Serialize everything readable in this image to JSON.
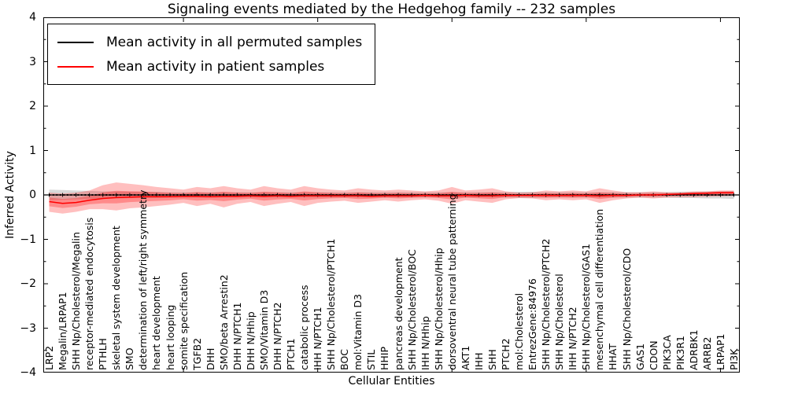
{
  "chart_data": {
    "type": "line",
    "title": "Signaling events mediated by the Hedgehog family -- 232 samples",
    "xlabel": "Cellular Entities",
    "ylabel": "Inferred Activity",
    "ylim": [
      -4,
      4
    ],
    "ytick_values": [
      4,
      3,
      2,
      1,
      0,
      -1,
      -2,
      -3,
      -4
    ],
    "ytick_labels": [
      "4",
      "3",
      "2",
      "1",
      "0",
      "−1",
      "−2",
      "−3",
      "−4"
    ],
    "grid": false,
    "legend_position": "upper left",
    "categories": [
      "LRP2",
      "Megalin/LRPAP1",
      "SHH Np/Cholesterol/Megalin",
      "receptor-mediated endocytosis",
      "PTHLH",
      "skeletal system development",
      "SMO",
      "determination of left/right symmetry",
      "heart development",
      "heart looping",
      "somite specification",
      "TGFB2",
      "DHH",
      "SMO/beta Arrestin2",
      "DHH N/PTCH1",
      "DHH N/Hhip",
      "SMO/Vitamin D3",
      "DHH N/PTCH2",
      "PTCH1",
      "catabolic process",
      "IHH N/PTCH1",
      "SHH Np/Cholesterol/PTCH1",
      "BOC",
      "mol:Vitamin D3",
      "STIL",
      "HHIP",
      "pancreas development",
      "SHH Np/Cholesterol/BOC",
      "IHH N/Hhip",
      "SHH Np/Cholesterol/Hhip",
      "dorsoventral neural tube patterning",
      "AKT1",
      "IHH",
      "SHH",
      "PTCH2",
      "mol:Cholesterol",
      "EntrezGene:84976",
      "SHH Np/Cholesterol/PTCH2",
      "SHH Np/Cholesterol",
      "IHH N/PTCH2",
      "SHH Np/Cholesterol/GAS1",
      "mesenchymal cell differentiation",
      "HHAT",
      "SHH Np/Cholesterol/CDO",
      "GAS1",
      "CDON",
      "PIK3CA",
      "PIK3R1",
      "ADRBK1",
      "ARRB2",
      "LRPAP1",
      "PI3K"
    ],
    "series": [
      {
        "name": "Mean activity in all permuted samples",
        "color": "#000000",
        "mean": 0.0,
        "band_half_width": [
          0.12,
          0.11,
          0.1,
          0.09,
          0.08,
          0.08,
          0.07,
          0.07,
          0.07,
          0.06,
          0.06,
          0.06,
          0.06,
          0.06,
          0.06,
          0.06,
          0.06,
          0.06,
          0.06,
          0.06,
          0.06,
          0.06,
          0.06,
          0.06,
          0.06,
          0.06,
          0.06,
          0.06,
          0.06,
          0.06,
          0.06,
          0.06,
          0.06,
          0.06,
          0.06,
          0.07,
          0.07,
          0.06,
          0.06,
          0.06,
          0.06,
          0.06,
          0.06,
          0.06,
          0.06,
          0.06,
          0.06,
          0.07,
          0.07,
          0.08,
          0.08,
          0.09
        ]
      },
      {
        "name": "Mean activity in patient samples",
        "color": "#ff0000",
        "values": [
          -0.15,
          -0.19,
          -0.17,
          -0.12,
          -0.08,
          -0.06,
          -0.05,
          -0.04,
          -0.04,
          -0.04,
          -0.03,
          -0.03,
          -0.04,
          -0.03,
          -0.03,
          -0.02,
          -0.03,
          -0.02,
          -0.03,
          -0.02,
          -0.02,
          -0.02,
          -0.02,
          -0.02,
          -0.03,
          -0.02,
          -0.02,
          -0.02,
          -0.01,
          -0.02,
          -0.02,
          -0.01,
          -0.02,
          -0.02,
          -0.01,
          -0.01,
          -0.01,
          -0.01,
          -0.01,
          -0.01,
          -0.01,
          -0.02,
          -0.01,
          -0.01,
          0.0,
          0.0,
          0.01,
          0.02,
          0.03,
          0.04,
          0.05,
          0.05
        ],
        "band_upper": [
          0.05,
          0.03,
          0.05,
          0.1,
          0.22,
          0.28,
          0.25,
          0.22,
          0.18,
          0.15,
          0.12,
          0.18,
          0.15,
          0.2,
          0.15,
          0.12,
          0.2,
          0.15,
          0.12,
          0.2,
          0.15,
          0.12,
          0.1,
          0.15,
          0.12,
          0.1,
          0.12,
          0.1,
          0.08,
          0.1,
          0.18,
          0.1,
          0.12,
          0.15,
          0.08,
          0.05,
          0.06,
          0.1,
          0.08,
          0.1,
          0.08,
          0.15,
          0.1,
          0.06,
          0.06,
          0.08,
          0.06,
          0.06,
          0.08,
          0.08,
          0.1,
          0.1
        ],
        "band_lower": [
          -0.38,
          -0.42,
          -0.38,
          -0.32,
          -0.32,
          -0.35,
          -0.3,
          -0.28,
          -0.25,
          -0.22,
          -0.18,
          -0.25,
          -0.2,
          -0.28,
          -0.2,
          -0.16,
          -0.25,
          -0.2,
          -0.16,
          -0.25,
          -0.18,
          -0.15,
          -0.13,
          -0.18,
          -0.15,
          -0.12,
          -0.15,
          -0.12,
          -0.1,
          -0.13,
          -0.2,
          -0.12,
          -0.15,
          -0.18,
          -0.1,
          -0.07,
          -0.08,
          -0.12,
          -0.1,
          -0.12,
          -0.1,
          -0.18,
          -0.12,
          -0.08,
          -0.06,
          -0.08,
          -0.06,
          -0.05,
          -0.05,
          -0.04,
          -0.03,
          -0.02
        ]
      }
    ]
  }
}
